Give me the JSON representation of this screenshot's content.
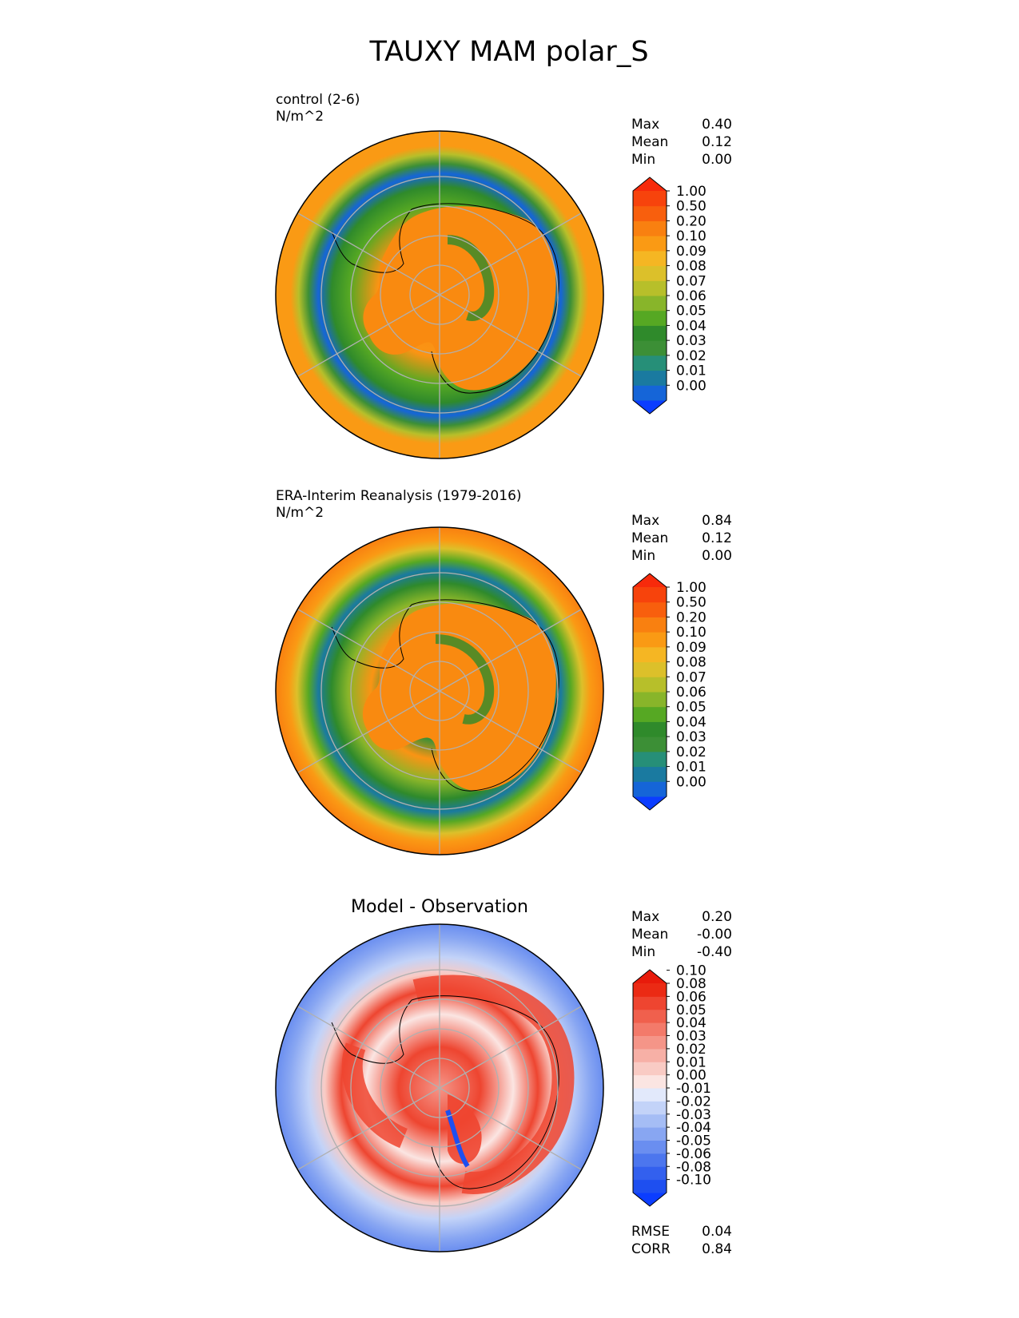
{
  "title": "TAUXY MAM polar_S",
  "chart_data": [
    {
      "type": "heatmap",
      "projection": "south-polar-stereographic",
      "subtitle_line1": "control (2-6)",
      "units": "N/m^2",
      "stats": [
        {
          "label": "Max",
          "value": "0.40"
        },
        {
          "label": "Mean",
          "value": "0.12"
        },
        {
          "label": "Min",
          "value": "0.00"
        }
      ],
      "colorbar": {
        "levels": [
          "0.00",
          "0.01",
          "0.02",
          "0.03",
          "0.04",
          "0.05",
          "0.06",
          "0.07",
          "0.08",
          "0.09",
          "0.10",
          "0.20",
          "0.50",
          "1.00"
        ],
        "colors": [
          "#0b3dff",
          "#1565d8",
          "#1a7aa0",
          "#268f78",
          "#3c8f36",
          "#2f8a2b",
          "#56a823",
          "#88b52a",
          "#b7bf2a",
          "#dcc02a",
          "#f5b623",
          "#fa9a14",
          "#f98010",
          "#f85f0d",
          "#f7430c",
          "#f72a0b"
        ]
      }
    },
    {
      "type": "heatmap",
      "projection": "south-polar-stereographic",
      "subtitle_line1": "ERA-Interim Reanalysis (1979-2016)",
      "units": "N/m^2",
      "stats": [
        {
          "label": "Max",
          "value": "0.84"
        },
        {
          "label": "Mean",
          "value": "0.12"
        },
        {
          "label": "Min",
          "value": "0.00"
        }
      ],
      "colorbar": {
        "levels": [
          "0.00",
          "0.01",
          "0.02",
          "0.03",
          "0.04",
          "0.05",
          "0.06",
          "0.07",
          "0.08",
          "0.09",
          "0.10",
          "0.20",
          "0.50",
          "1.00"
        ],
        "colors": [
          "#0b3dff",
          "#1565d8",
          "#1a7aa0",
          "#268f78",
          "#3c8f36",
          "#2f8a2b",
          "#56a823",
          "#88b52a",
          "#b7bf2a",
          "#dcc02a",
          "#f5b623",
          "#fa9a14",
          "#f98010",
          "#f85f0d",
          "#f7430c",
          "#f72a0b"
        ]
      }
    },
    {
      "type": "heatmap",
      "projection": "south-polar-stereographic",
      "subtitle": "Model - Observation",
      "stats": [
        {
          "label": "Max",
          "value": "0.20"
        },
        {
          "label": "Mean",
          "value": "-0.00"
        },
        {
          "label": "Min",
          "value": "-0.40"
        }
      ],
      "metrics": [
        {
          "label": "RMSE",
          "value": "0.04"
        },
        {
          "label": "CORR",
          "value": "0.84"
        }
      ],
      "colorbar": {
        "levels": [
          "-0.10",
          "-0.08",
          "-0.06",
          "-0.05",
          "-0.04",
          "-0.03",
          "-0.02",
          "-0.01",
          "0.00",
          "0.01",
          "0.02",
          "0.03",
          "0.04",
          "0.05",
          "0.06",
          "0.08",
          "0.10"
        ],
        "colors": [
          "#0b3dff",
          "#1e4ff0",
          "#3360ee",
          "#4c76ee",
          "#6a8ef0",
          "#88a6f2",
          "#a5bdf5",
          "#c3d3f8",
          "#e2e9fb",
          "#fbe5e2",
          "#f9cbc4",
          "#f7b0a6",
          "#f59588",
          "#f37a6a",
          "#f0604d",
          "#ee4530",
          "#eb2a14",
          "#e81b0b"
        ]
      }
    }
  ]
}
